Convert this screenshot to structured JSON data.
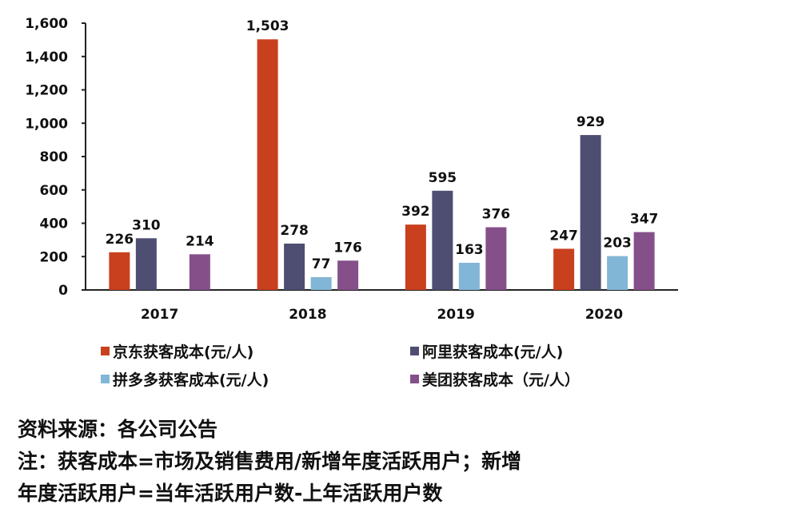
{
  "chart_data": {
    "type": "bar",
    "categories": [
      "2017",
      "2018",
      "2019",
      "2020"
    ],
    "series": [
      {
        "name": "京东获客成本(元/人)",
        "color": "#c9401f",
        "values": [
          226,
          1503,
          392,
          247
        ]
      },
      {
        "name": "阿里获客成本(元/人)",
        "color": "#4e4e72",
        "values": [
          310,
          278,
          595,
          929
        ]
      },
      {
        "name": "拼多多获客成本(元/人)",
        "color": "#82b6d6",
        "values": [
          null,
          77,
          163,
          203
        ]
      },
      {
        "name": "美团获客成本（元/人）",
        "color": "#85508a",
        "values": [
          214,
          176,
          376,
          347
        ]
      }
    ],
    "yticks": [
      "0",
      "200",
      "400",
      "600",
      "800",
      "1,000",
      "1,200",
      "1,400",
      "1,600"
    ],
    "ylim": [
      0,
      1600
    ],
    "grid": false,
    "legend_placement": "bottom",
    "title": "",
    "xlabel": "",
    "ylabel": ""
  },
  "notes": {
    "source": "资料来源：各公司公告",
    "line1": "注：获客成本=市场及销售费用/新增年度活跃用户；新增",
    "line2": "年度活跃用户=当年活跃用户数-上年活跃用户数"
  }
}
